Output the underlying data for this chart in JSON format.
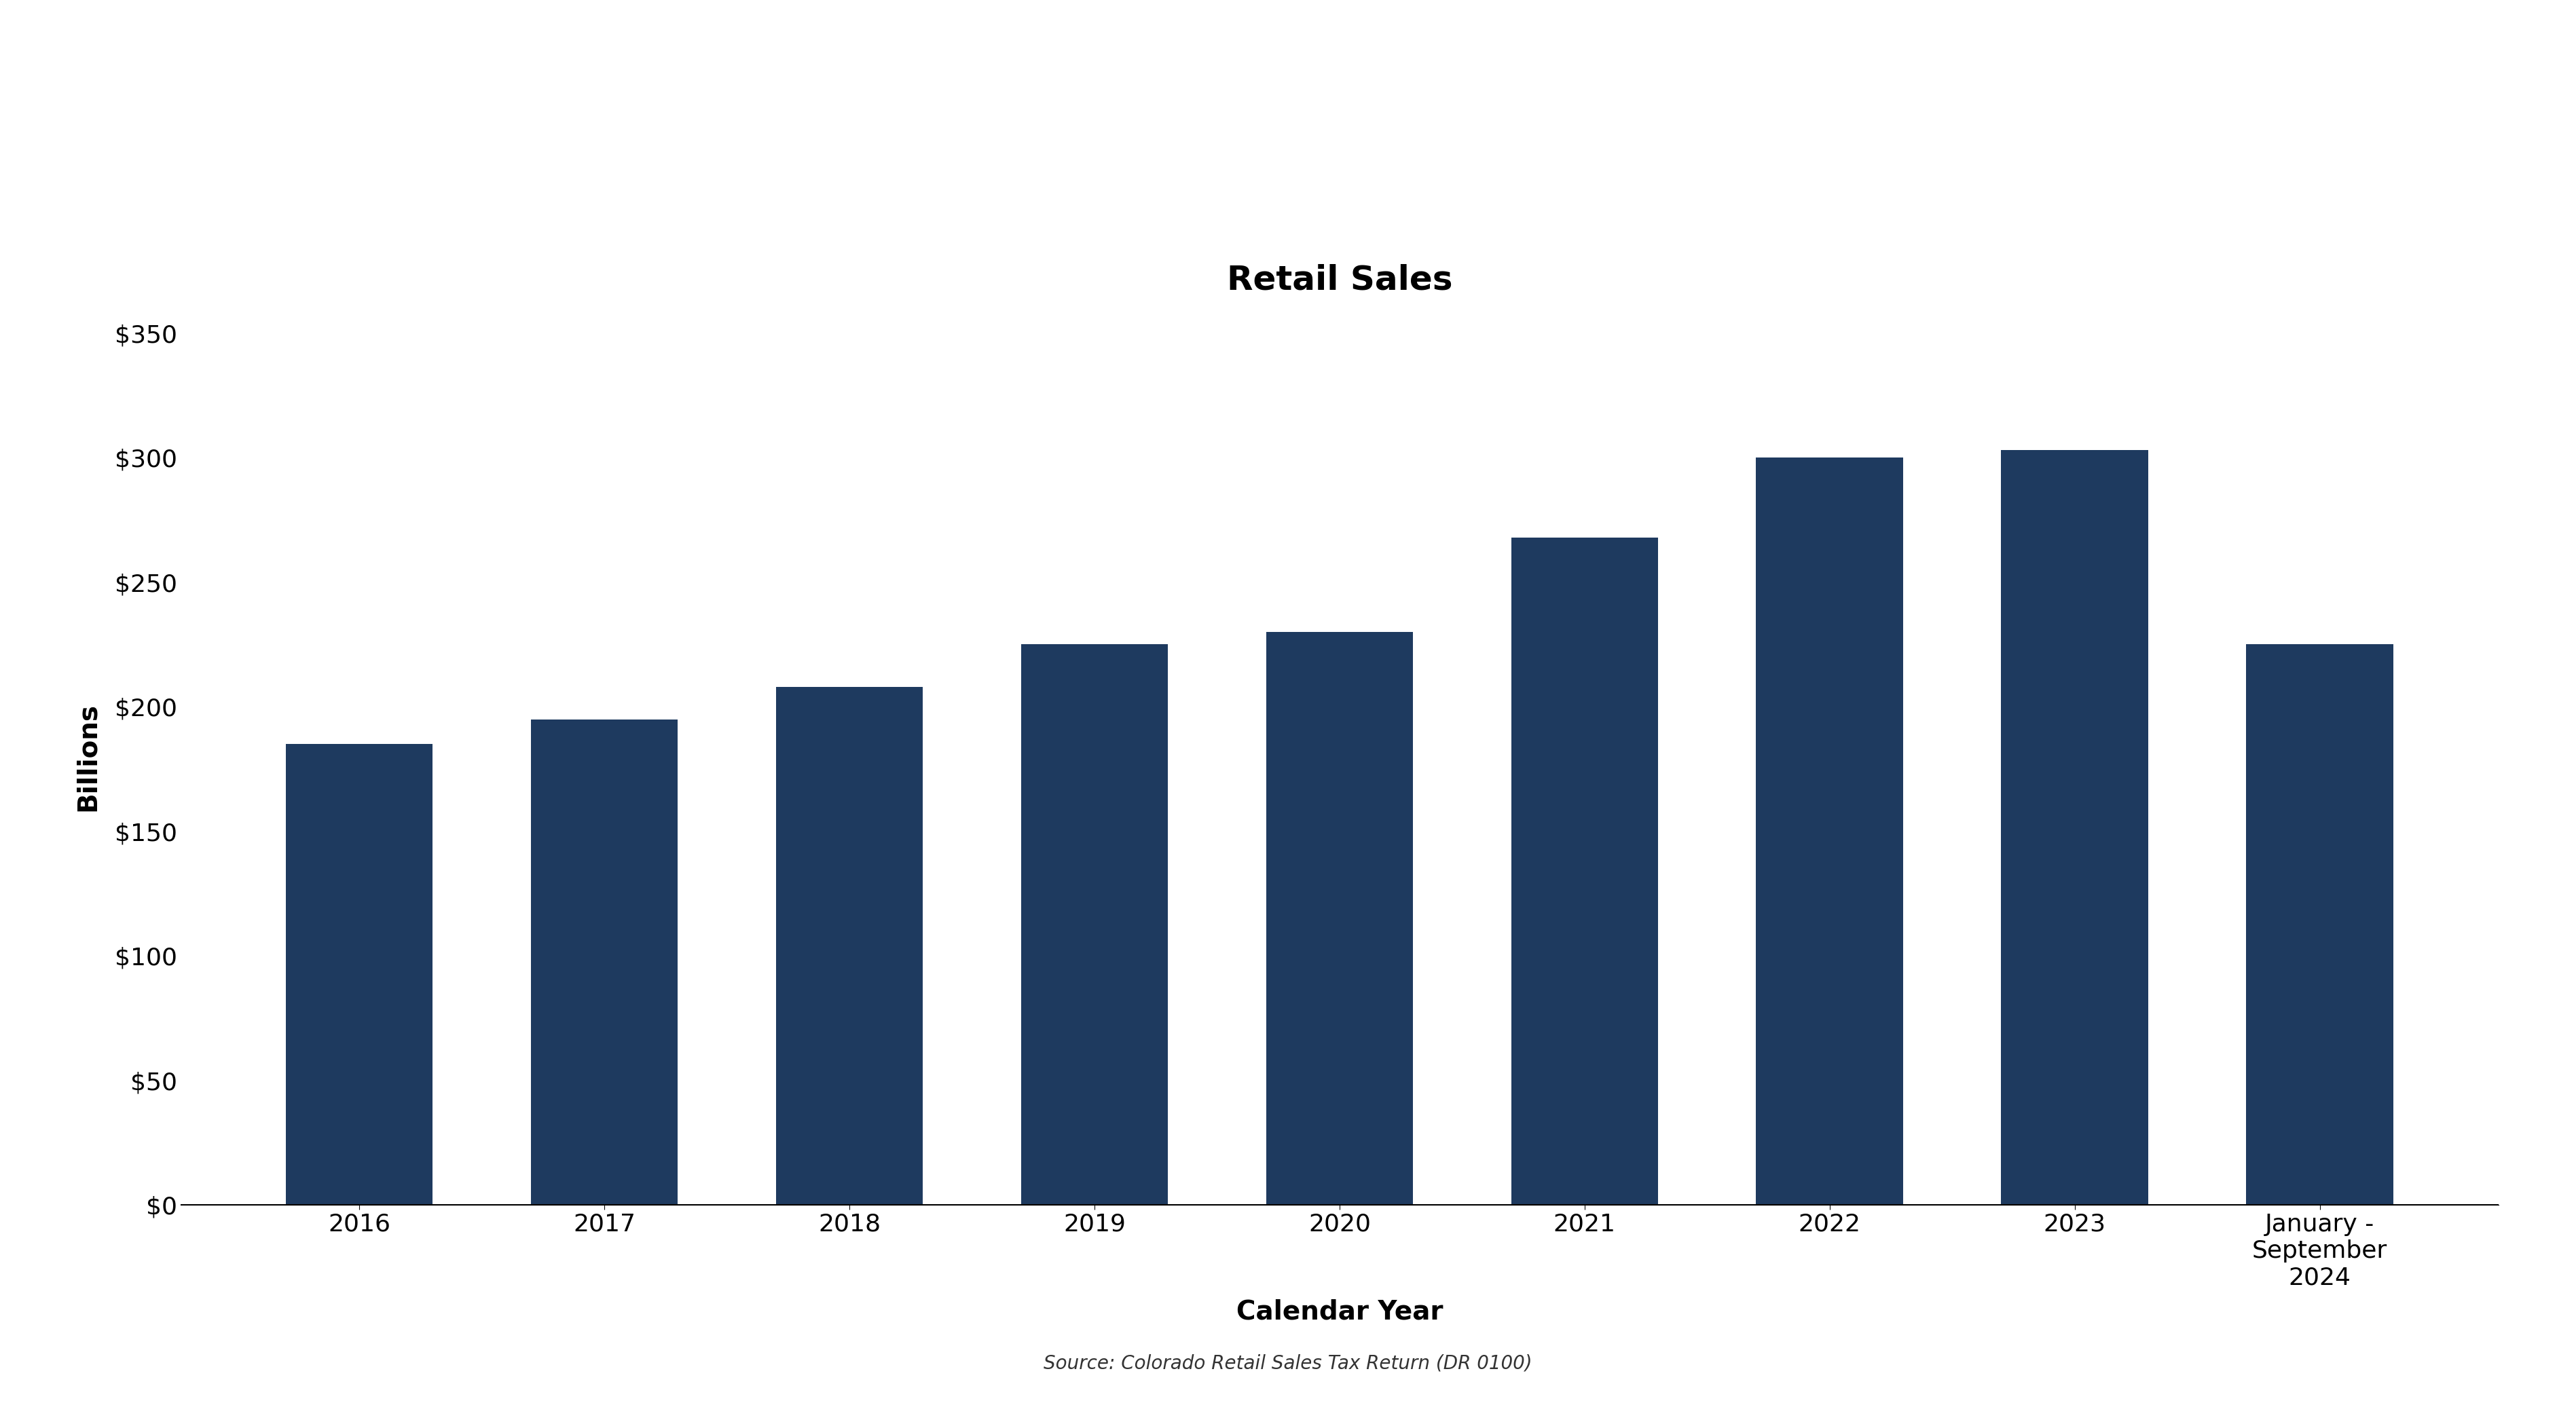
{
  "categories": [
    "2016",
    "2017",
    "2018",
    "2019",
    "2020",
    "2021",
    "2022",
    "2023",
    "January -\nSeptember\n2024"
  ],
  "values": [
    185,
    195,
    208,
    225,
    230,
    268,
    300,
    303,
    225
  ],
  "bar_color": "#1e3a5f",
  "title": "Retail Sales",
  "title_fontsize": 36,
  "xlabel": "Calendar Year",
  "xlabel_fontsize": 28,
  "ylabel": "Billions",
  "ylabel_fontsize": 28,
  "ylim": [
    0,
    360
  ],
  "yticks": [
    0,
    50,
    100,
    150,
    200,
    250,
    300,
    350
  ],
  "tick_fontsize": 26,
  "source_text": "Source: Colorado Retail Sales Tax Return (DR 0100)",
  "source_fontsize": 20,
  "background_color": "#ffffff",
  "bar_width": 0.6
}
